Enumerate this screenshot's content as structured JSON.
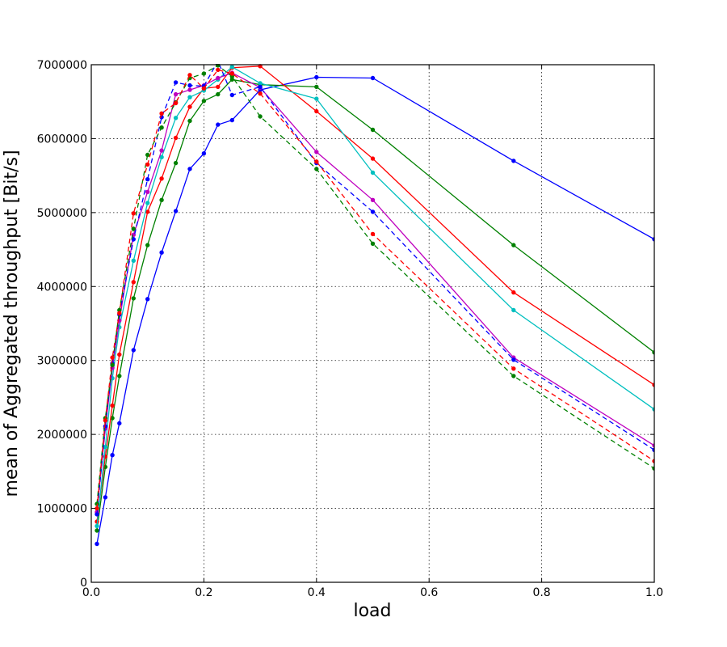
{
  "chart_data": {
    "type": "line",
    "title": "",
    "xlabel": "load",
    "ylabel": "mean of Aggregated throughput [Bit/s]",
    "xlim": [
      0.0,
      1.0
    ],
    "ylim": [
      0,
      7000000
    ],
    "xticks": [
      0.0,
      0.2,
      0.4,
      0.6,
      0.8,
      1.0
    ],
    "xtick_labels": [
      "0.0",
      "0.2",
      "0.4",
      "0.6",
      "0.8",
      "1.0"
    ],
    "yticks": [
      0,
      1000000,
      2000000,
      3000000,
      4000000,
      5000000,
      6000000,
      7000000
    ],
    "ytick_labels": [
      "0",
      "1000000",
      "2000000",
      "3000000",
      "4000000",
      "5000000",
      "6000000",
      "7000000"
    ],
    "grid": true,
    "legend": "none",
    "series": [
      {
        "color": "#0000ff",
        "dash": false,
        "x": [
          0.01,
          0.025,
          0.0375,
          0.05,
          0.075,
          0.1,
          0.125,
          0.15,
          0.175,
          0.2,
          0.225,
          0.25,
          0.3,
          0.4,
          0.5,
          0.75,
          1.0
        ],
        "y": [
          520000,
          1150000,
          1720000,
          2150000,
          3140000,
          3830000,
          4460000,
          5020000,
          5590000,
          5800000,
          6190000,
          6250000,
          6660000,
          6830000,
          6820000,
          5700000,
          4640000
        ]
      },
      {
        "color": "#008000",
        "dash": false,
        "x": [
          0.01,
          0.025,
          0.0375,
          0.05,
          0.075,
          0.1,
          0.125,
          0.15,
          0.175,
          0.2,
          0.225,
          0.25,
          0.3,
          0.4,
          0.5,
          0.75,
          1.0
        ],
        "y": [
          700000,
          1560000,
          2220000,
          2790000,
          3840000,
          4560000,
          5170000,
          5670000,
          6240000,
          6510000,
          6600000,
          6800000,
          6730000,
          6700000,
          6120000,
          4560000,
          3110000
        ]
      },
      {
        "color": "#ff0000",
        "dash": false,
        "x": [
          0.01,
          0.025,
          0.0375,
          0.05,
          0.075,
          0.1,
          0.125,
          0.15,
          0.175,
          0.2,
          0.225,
          0.25,
          0.3,
          0.4,
          0.5,
          0.75,
          1.0
        ],
        "y": [
          820000,
          1700000,
          2390000,
          3080000,
          4060000,
          5010000,
          5460000,
          6010000,
          6430000,
          6680000,
          6700000,
          6960000,
          6980000,
          6370000,
          5730000,
          3920000,
          2670000
        ]
      },
      {
        "color": "#00bfbf",
        "dash": false,
        "x": [
          0.01,
          0.025,
          0.0375,
          0.05,
          0.075,
          0.1,
          0.125,
          0.15,
          0.175,
          0.2,
          0.225,
          0.25,
          0.3,
          0.4,
          0.5,
          0.75,
          1.0
        ],
        "y": [
          760000,
          1830000,
          2760000,
          3450000,
          4350000,
          5130000,
          5750000,
          6280000,
          6560000,
          6650000,
          6800000,
          6970000,
          6750000,
          6540000,
          5540000,
          3680000,
          2340000
        ]
      },
      {
        "color": "#bf00bf",
        "dash": false,
        "x": [
          0.01,
          0.025,
          0.0375,
          0.05,
          0.075,
          0.1,
          0.125,
          0.15,
          0.175,
          0.2,
          0.225,
          0.25,
          0.3,
          0.4,
          0.5,
          0.75,
          1.0
        ],
        "y": [
          950000,
          2080000,
          2900000,
          3540000,
          4700000,
          5280000,
          5840000,
          6600000,
          6660000,
          6720000,
          6820000,
          6890000,
          6690000,
          5820000,
          5170000,
          3040000,
          1850000
        ]
      },
      {
        "color": "#0000ff",
        "dash": true,
        "x": [
          0.01,
          0.025,
          0.0375,
          0.05,
          0.075,
          0.1,
          0.125,
          0.15,
          0.175,
          0.2,
          0.225,
          0.25,
          0.3,
          0.4,
          0.5,
          0.75,
          1.0
        ],
        "y": [
          920000,
          2110000,
          2960000,
          3620000,
          4640000,
          5450000,
          6290000,
          6760000,
          6720000,
          6710000,
          7050000,
          6590000,
          6700000,
          5670000,
          5010000,
          3010000,
          1790000
        ]
      },
      {
        "color": "#008000",
        "dash": true,
        "x": [
          0.01,
          0.025,
          0.0375,
          0.05,
          0.075,
          0.1,
          0.125,
          0.15,
          0.175,
          0.2,
          0.225,
          0.25,
          0.3,
          0.4,
          0.5,
          0.75,
          1.0
        ],
        "y": [
          1060000,
          2220000,
          2940000,
          3680000,
          4780000,
          5780000,
          6150000,
          6490000,
          6820000,
          6880000,
          6990000,
          6840000,
          6300000,
          5590000,
          4580000,
          2790000,
          1540000
        ]
      },
      {
        "color": "#ff0000",
        "dash": true,
        "x": [
          0.01,
          0.025,
          0.0375,
          0.05,
          0.075,
          0.1,
          0.125,
          0.15,
          0.175,
          0.2,
          0.225,
          0.25,
          0.3,
          0.4,
          0.5,
          0.75,
          1.0
        ],
        "y": [
          1000000,
          2190000,
          3040000,
          3640000,
          4990000,
          5650000,
          6340000,
          6480000,
          6860000,
          6680000,
          6930000,
          6880000,
          6610000,
          5690000,
          4710000,
          2890000,
          1640000
        ]
      }
    ]
  }
}
